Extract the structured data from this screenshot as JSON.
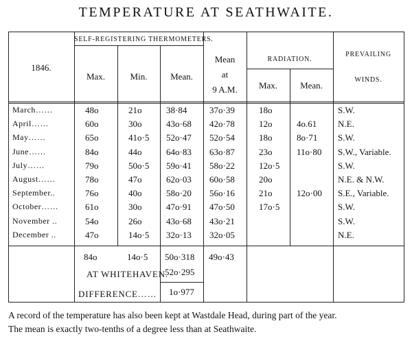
{
  "title": "TEMPERATURE AT SEATHWAITE.",
  "header": {
    "year": "1846.",
    "self_registering": "SELF-REGISTERING THERMOMETERS.",
    "max": "Max.",
    "min": "Min.",
    "mean": "Mean.",
    "mean_at_1": "Mean",
    "mean_at_2": "at",
    "mean_at_3": "9 A.M.",
    "radiation": "RADIATION.",
    "rad_max": "Max.",
    "rad_mean": "Mean.",
    "winds_1": "PREVAILING",
    "winds_2": "WINDS."
  },
  "rows": [
    {
      "month": "March……",
      "max": "48o",
      "min": "21o",
      "mean": "38·84",
      "mean9": "37o·39",
      "rmax": "18o",
      "rmean": "",
      "winds": "S.W."
    },
    {
      "month": "April……",
      "max": "60o",
      "min": "30o",
      "mean": "43o·68",
      "mean9": "42o·78",
      "rmax": "12o",
      "rmean": "4o.61",
      "winds": "N.E."
    },
    {
      "month": "May……",
      "max": "65o",
      "min": "41o·5",
      "mean": "52o·47",
      "mean9": "52o·54",
      "rmax": "18o",
      "rmean": "8o·71",
      "winds": "S.W."
    },
    {
      "month": "June……",
      "max": "84o",
      "min": "44o",
      "mean": "64o·83",
      "mean9": "63o·87",
      "rmax": "23o",
      "rmean": "11o·80",
      "winds": "S.W., Variable."
    },
    {
      "month": "July……",
      "max": "79o",
      "min": "50o·5",
      "mean": "59o·41",
      "mean9": "58o·22",
      "rmax": "12o·5",
      "rmean": "",
      "winds": "S.W."
    },
    {
      "month": "August……",
      "max": "78o",
      "min": "47o",
      "mean": "62o·03",
      "mean9": "60o·58",
      "rmax": "20o",
      "rmean": "",
      "winds": "N.E. & N.W."
    },
    {
      "month": "September..",
      "max": "76o",
      "min": "40o",
      "mean": "58o·20",
      "mean9": "56o·16",
      "rmax": "21o",
      "rmean": "12o·00",
      "winds": "S.E., Variable."
    },
    {
      "month": "October……",
      "max": "61o",
      "min": "30o",
      "mean": "47o·91",
      "mean9": "47o·50",
      "rmax": "17o·5",
      "rmean": "",
      "winds": "S.W."
    },
    {
      "month": "November ..",
      "max": "54o",
      "min": "26o",
      "mean": "43o·68",
      "mean9": "43o·21",
      "rmax": "",
      "rmean": "",
      "winds": "S.W."
    },
    {
      "month": "December ..",
      "max": "47o",
      "min": "14o·5",
      "mean": "32o·13",
      "mean9": "32o·05",
      "rmax": "",
      "rmean": "",
      "winds": "N.E."
    }
  ],
  "totals": {
    "max": "84o",
    "min": "14o·5",
    "mean": "50o·318",
    "mean9": "49o·43",
    "whitehaven_label": "AT WHITEHAVEN.",
    "whitehaven_value": "52o·295",
    "difference_label": "DIFFERENCE……",
    "difference_value": "1o·977"
  },
  "caption": {
    "line1": "A record of the temperature has also been kept at Wastdale Head, during part of the year.",
    "line2": "The mean is exactly two-tenths of a degree less than at Seathwaite."
  }
}
